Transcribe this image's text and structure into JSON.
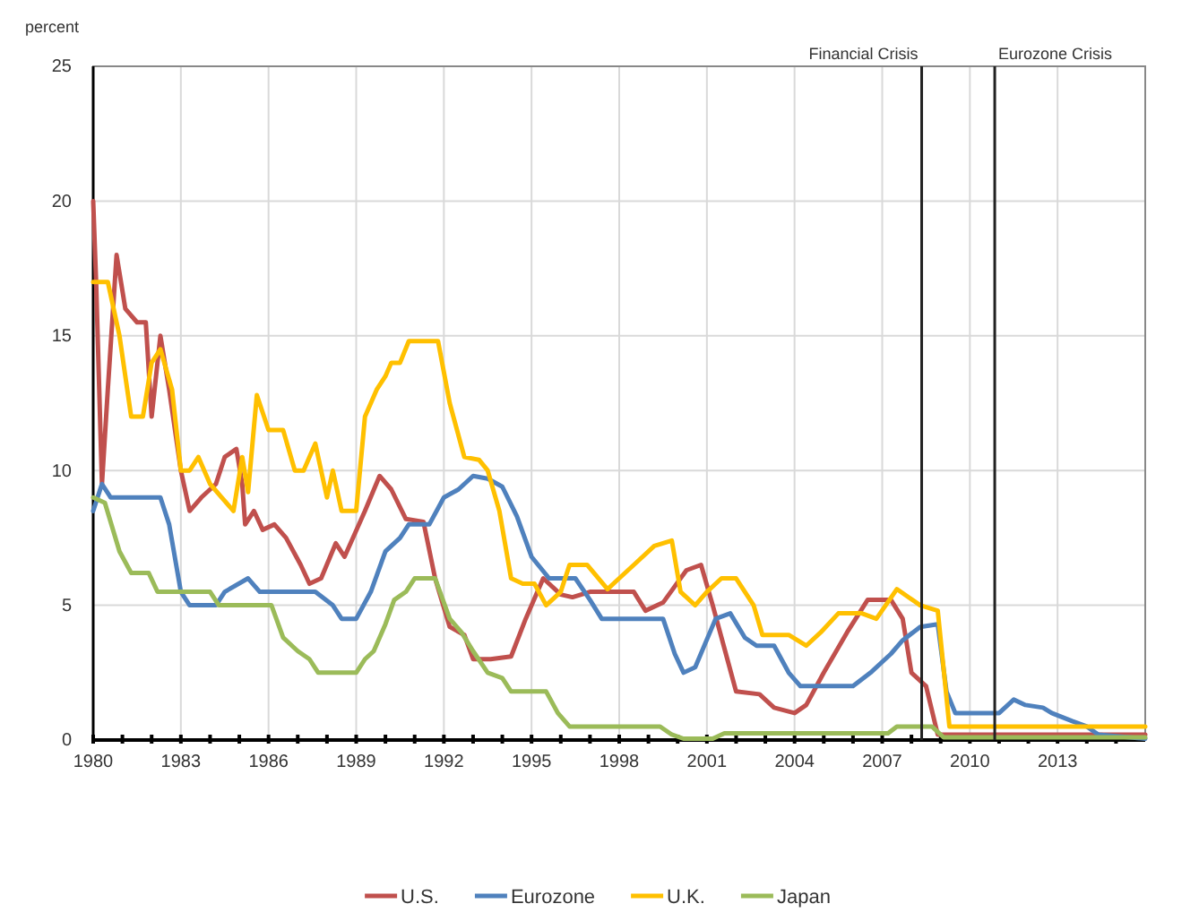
{
  "chart_data": {
    "type": "line",
    "ylabel": "percent",
    "xlim": [
      1980,
      2016
    ],
    "xticks": [
      1980,
      {
        "value": 1981,
        "label": null
      },
      {
        "value": 1982,
        "label": null
      },
      1983,
      {
        "value": 1984,
        "label": null
      },
      {
        "value": 1985,
        "label": null
      },
      1986,
      {
        "value": 1987,
        "label": null
      },
      {
        "value": 1988,
        "label": null
      },
      1989,
      {
        "value": 1990,
        "label": null
      },
      {
        "value": 1991,
        "label": null
      },
      1992,
      {
        "value": 1993,
        "label": null
      },
      {
        "value": 1994,
        "label": null
      },
      1995,
      {
        "value": 1996,
        "label": null
      },
      {
        "value": 1997,
        "label": null
      },
      1998,
      {
        "value": 1999,
        "label": null
      },
      {
        "value": 2000,
        "label": null
      },
      2001,
      {
        "value": 2002,
        "label": null
      },
      {
        "value": 2003,
        "label": null
      },
      2004,
      {
        "value": 2005,
        "label": null
      },
      {
        "value": 2006,
        "label": null
      },
      2007,
      {
        "value": 2008,
        "label": null
      },
      {
        "value": 2009,
        "label": null
      },
      2010,
      {
        "value": 2011,
        "label": null
      },
      {
        "value": 2012,
        "label": null
      },
      2013,
      {
        "value": 2014,
        "label": null
      },
      {
        "value": 2015,
        "label": null
      }
    ],
    "ylim": [
      0,
      25
    ],
    "yticks": [
      0,
      5,
      10,
      15,
      20,
      25
    ],
    "grid": true,
    "legend": "bottom",
    "line_style": "solid",
    "marker": "none",
    "ref_lines": [
      {
        "axis": "x",
        "value": 2008.35,
        "label": "Financial Crisis",
        "color": "#222222"
      },
      {
        "axis": "x",
        "value": 2010.85,
        "label": "Eurozone Crisis",
        "color": "#222222"
      }
    ],
    "series": [
      {
        "name": "U.S.",
        "color": "#c0504d",
        "x": [
          1980,
          1980.1,
          1980.3,
          1980.5,
          1980.8,
          1981.1,
          1981.5,
          1981.8,
          1982,
          1982.3,
          1982.6,
          1983,
          1983.3,
          1983.7,
          1984.2,
          1984.5,
          1984.9,
          1985.1,
          1985.2,
          1985.5,
          1985.8,
          1986.2,
          1986.6,
          1987.1,
          1987.4,
          1987.8,
          1988.3,
          1988.6,
          1989.3,
          1989.8,
          1990.2,
          1990.7,
          1991.3,
          1991.7,
          1992.2,
          1992.7,
          1993,
          1993.6,
          1994.3,
          1994.8,
          1995.4,
          1996,
          1996.4,
          1997,
          1998.5,
          1998.9,
          1999.5,
          2000.3,
          2000.8,
          2001.2,
          2001.7,
          2002,
          2002.8,
          2003.3,
          2004,
          2004.4,
          2005,
          2005.8,
          2006.5,
          2007.3,
          2007.7,
          2008,
          2008.5,
          2008.9,
          2016
        ],
        "values": [
          20,
          17,
          9.5,
          13,
          18,
          16,
          15.5,
          15.5,
          12,
          15,
          13,
          10,
          8.5,
          9,
          9.5,
          10.5,
          10.8,
          9.5,
          8,
          8.5,
          7.8,
          8,
          7.5,
          6.5,
          5.8,
          6,
          7.3,
          6.8,
          8.5,
          9.8,
          9.3,
          8.2,
          8.1,
          6,
          4.2,
          3.9,
          3,
          3,
          3.1,
          4.5,
          6,
          5.4,
          5.3,
          5.5,
          5.5,
          4.8,
          5.1,
          6.3,
          6.5,
          5,
          3,
          1.8,
          1.7,
          1.2,
          1,
          1.3,
          2.5,
          4,
          5.2,
          5.2,
          4.5,
          2.5,
          2,
          0.2,
          0.2
        ]
      },
      {
        "name": "Eurozone",
        "color": "#4f81bd",
        "x": [
          1980,
          1980.3,
          1980.6,
          1982.3,
          1982.6,
          1983,
          1983.3,
          1984.2,
          1984.5,
          1985.3,
          1985.7,
          1987.6,
          1988.2,
          1988.5,
          1989,
          1989.5,
          1990,
          1990.5,
          1990.8,
          1991.5,
          1992,
          1992.5,
          1993,
          1993.5,
          1994,
          1994.5,
          1995,
          1995.6,
          1996.5,
          1997,
          1997.4,
          1999.5,
          1999.9,
          2000.2,
          2000.6,
          2001.3,
          2001.8,
          2002.3,
          2002.7,
          2003.3,
          2003.8,
          2004.2,
          2006,
          2006.6,
          2007.3,
          2007.7,
          2008.3,
          2008.9,
          2009.2,
          2009.5,
          2011,
          2011.5,
          2011.9,
          2012.5,
          2012.8,
          2013.5,
          2014,
          2014.4,
          2016
        ],
        "values": [
          8.5,
          9.5,
          9,
          9,
          8,
          5.5,
          5,
          5,
          5.5,
          6,
          5.5,
          5.5,
          5,
          4.5,
          4.5,
          5.5,
          7,
          7.5,
          8,
          8,
          9,
          9.3,
          9.8,
          9.7,
          9.4,
          8.3,
          6.8,
          6,
          6,
          5.2,
          4.5,
          4.5,
          3.2,
          2.5,
          2.7,
          4.5,
          4.7,
          3.8,
          3.5,
          3.5,
          2.5,
          2,
          2,
          2.5,
          3.2,
          3.7,
          4.2,
          4.3,
          1.8,
          1,
          1,
          1.5,
          1.3,
          1.2,
          1,
          0.7,
          0.5,
          0.2,
          0.05
        ]
      },
      {
        "name": "U.K.",
        "color": "#ffc000",
        "x": [
          1980,
          1980.5,
          1980.9,
          1981.3,
          1981.7,
          1982,
          1982.3,
          1982.7,
          1983,
          1983.3,
          1983.6,
          1984,
          1984.4,
          1984.8,
          1985.1,
          1985.3,
          1985.6,
          1986,
          1986.5,
          1986.9,
          1987.2,
          1987.6,
          1988,
          1988.2,
          1988.5,
          1989,
          1989.3,
          1989.7,
          1990,
          1990.2,
          1990.5,
          1990.8,
          1991.8,
          1992.2,
          1992.7,
          1993.2,
          1993.5,
          1993.9,
          1994.3,
          1994.7,
          1995.1,
          1995.5,
          1996,
          1996.3,
          1996.9,
          1997.6,
          1998,
          1998.5,
          1999.2,
          1999.8,
          2000.1,
          2000.6,
          2001,
          2001.5,
          2002,
          2002.6,
          2002.9,
          2003.8,
          2004.4,
          2004.9,
          2005.5,
          2006.3,
          2006.8,
          2007.5,
          2008.3,
          2008.9,
          2009.3,
          2016
        ],
        "values": [
          17,
          17,
          15,
          12,
          12,
          14,
          14.5,
          13,
          10,
          10,
          10.5,
          9.5,
          9,
          8.5,
          10.5,
          9.2,
          12.8,
          11.5,
          11.5,
          10,
          10,
          11,
          9,
          10,
          8.5,
          8.5,
          12,
          13,
          13.5,
          14,
          14,
          14.8,
          14.8,
          12.5,
          10.5,
          10.4,
          10,
          8.5,
          6,
          5.8,
          5.8,
          5,
          5.5,
          6.5,
          6.5,
          5.6,
          6,
          6.5,
          7.2,
          7.4,
          5.5,
          5,
          5.5,
          6,
          6,
          5,
          3.9,
          3.9,
          3.5,
          4,
          4.7,
          4.7,
          4.5,
          5.6,
          5,
          4.8,
          0.5,
          0.5
        ]
      },
      {
        "name": "Japan",
        "color": "#9bbb59",
        "x": [
          1980,
          1980.4,
          1980.9,
          1981.3,
          1981.9,
          1982.2,
          1984,
          1984.3,
          1986.1,
          1986.5,
          1987,
          1987.4,
          1987.7,
          1989,
          1989.3,
          1989.6,
          1990,
          1990.3,
          1990.7,
          1991,
          1991.7,
          1992.2,
          1992.6,
          1993,
          1993.5,
          1994,
          1994.3,
          1995.5,
          1995.9,
          1996.3,
          1999.4,
          1999.8,
          2000.2,
          2001.2,
          2001.6,
          2007.2,
          2007.5,
          2008.7,
          2009.1,
          2016
        ],
        "values": [
          9,
          8.8,
          7,
          6.2,
          6.2,
          5.5,
          5.5,
          5,
          5,
          3.8,
          3.3,
          3,
          2.5,
          2.5,
          3,
          3.3,
          4.3,
          5.2,
          5.5,
          6,
          6,
          4.5,
          4,
          3.3,
          2.5,
          2.3,
          1.8,
          1.8,
          1,
          0.5,
          0.5,
          0.2,
          0.05,
          0.05,
          0.25,
          0.25,
          0.5,
          0.5,
          0.1,
          0.1
        ]
      }
    ]
  }
}
